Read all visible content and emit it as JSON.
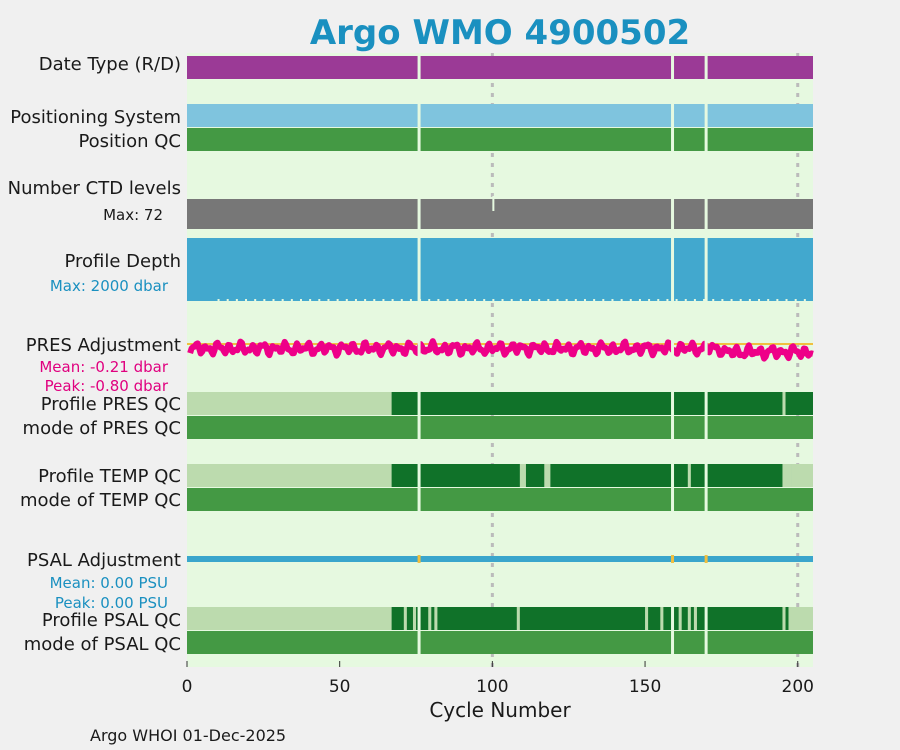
{
  "chart_data": {
    "type": "timeline",
    "title": "Argo WMO 4900502",
    "xlabel": "Cycle Number",
    "xlim": [
      0,
      205
    ],
    "xticks": [
      0,
      50,
      100,
      150,
      200
    ],
    "missing_cycles": [
      76,
      159,
      170
    ],
    "rows": [
      {
        "key": "datetype",
        "label": "Date Type (R/D)"
      },
      {
        "key": "possys",
        "label": "Positioning System"
      },
      {
        "key": "posqc",
        "label": "Position QC"
      },
      {
        "key": "nlev",
        "label": "Number CTD levels",
        "sublabel": "Max: 72"
      },
      {
        "key": "depth",
        "label": "Profile Depth",
        "sublabel": "Max: 2000 dbar"
      },
      {
        "key": "presadj",
        "label": "PRES Adjustment",
        "sublabel": "Mean: -0.21 dbar",
        "sublabel2": "Peak: -0.80 dbar"
      },
      {
        "key": "presqc",
        "label": "Profile PRES QC"
      },
      {
        "key": "presmode",
        "label": "mode of PRES QC"
      },
      {
        "key": "tempqc",
        "label": "Profile TEMP QC"
      },
      {
        "key": "tempmode",
        "label": "mode of TEMP QC"
      },
      {
        "key": "psaladj",
        "label": "PSAL Adjustment",
        "sublabel": "Mean: 0.00 PSU",
        "sublabel2": "Peak: 0.00 PSU"
      },
      {
        "key": "psalqc",
        "label": "Profile PSAL QC"
      },
      {
        "key": "psalmode",
        "label": "mode of PSAL QC"
      }
    ],
    "pres_adjustment": {
      "mean": -0.21,
      "peak": -0.8,
      "unit": "dbar"
    },
    "psal_adjustment": {
      "mean": 0.0,
      "peak": 0.0,
      "unit": "PSU"
    },
    "qc_a_from_cycle": 67,
    "temp_qc_non_a_segments": [
      [
        109,
        111
      ],
      [
        117,
        119
      ],
      [
        164,
        165
      ],
      [
        195,
        198
      ]
    ],
    "psal_qc_non_a_segments": [
      [
        71,
        72
      ],
      [
        74,
        75
      ],
      [
        79,
        80
      ],
      [
        81,
        82
      ],
      [
        108,
        109
      ],
      [
        150,
        151
      ],
      [
        155,
        156
      ],
      [
        161,
        162
      ],
      [
        164,
        165
      ],
      [
        166,
        167
      ],
      [
        195,
        196
      ]
    ],
    "pres_qc_non_a_segments": [
      [
        195,
        196
      ]
    ],
    "colors": {
      "background": "#e6f9e0",
      "datetype": "#9b3a96",
      "possys": "#7fc4de",
      "qc_good": "#449944",
      "qc_a": "#107229",
      "qc_b": "#bcdbae",
      "nlev": "#777777",
      "depth": "#42a8ce",
      "presadj": "#ee0088",
      "psaladj": "#3aa6cc",
      "title": "#1a90c0"
    }
  },
  "footer": "Argo WHOI 01-Dec-2025"
}
